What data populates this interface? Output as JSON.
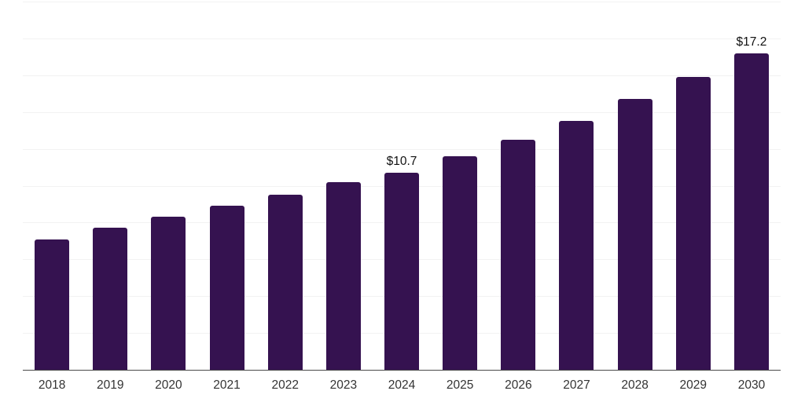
{
  "chart_data": {
    "type": "bar",
    "title": "",
    "xlabel": "",
    "ylabel": "",
    "categories": [
      "2018",
      "2019",
      "2020",
      "2021",
      "2022",
      "2023",
      "2024",
      "2025",
      "2026",
      "2027",
      "2028",
      "2029",
      "2030"
    ],
    "values": [
      7.1,
      7.7,
      8.3,
      8.9,
      9.5,
      10.2,
      10.7,
      11.6,
      12.5,
      13.5,
      14.7,
      15.9,
      17.2
    ],
    "data_labels": [
      {
        "category": "2024",
        "text": "$10.7"
      },
      {
        "category": "2030",
        "text": "$17.2"
      }
    ],
    "ylim": [
      0,
      20
    ],
    "gridline_step": 2,
    "grid": true,
    "y_axis_labels_visible": false,
    "legend_position": "none",
    "colors": {
      "bar": "#351250",
      "gridline": "#f2f2f2",
      "axis_line": "#4a4a4a",
      "data_label_text": "#111111",
      "tick_label_text": "#333333",
      "background": "#ffffff"
    }
  }
}
